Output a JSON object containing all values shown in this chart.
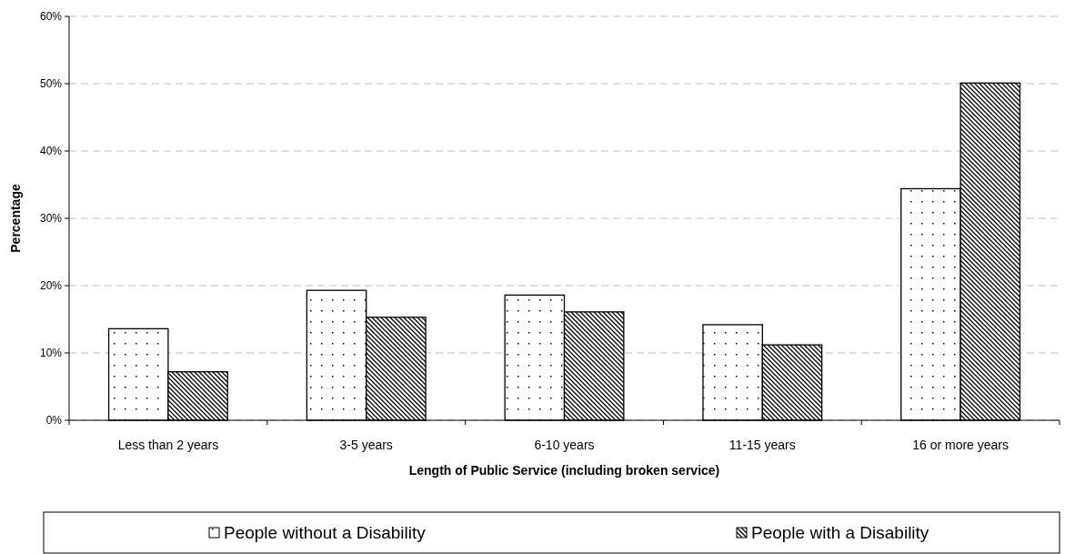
{
  "chart_data": {
    "type": "bar",
    "xlabel": "Length of Public Service  (including broken service)",
    "ylabel": "Percentage",
    "categories": [
      "Less than 2 years",
      "3-5 years",
      "6-10 years",
      "11-15 years",
      "16 or more years"
    ],
    "series": [
      {
        "name": "People without a Disability",
        "color": "#000000",
        "values": [
          13.6,
          19.3,
          18.6,
          14.2,
          34.4
        ]
      },
      {
        "name": "People with a Disability",
        "color": "#000000",
        "values": [
          7.2,
          15.3,
          16.1,
          11.2,
          50.1
        ]
      }
    ],
    "ylim": [
      0,
      60
    ],
    "yticks": [
      {
        "value": 0,
        "label": "0%"
      },
      {
        "value": 10,
        "label": "10%"
      },
      {
        "value": 20,
        "label": "20%"
      },
      {
        "value": 30,
        "label": "30%"
      },
      {
        "value": 40,
        "label": "40%"
      },
      {
        "value": 50,
        "label": "50%"
      },
      {
        "value": 60,
        "label": "60%"
      }
    ],
    "grid": "y",
    "legend": "bottom"
  }
}
